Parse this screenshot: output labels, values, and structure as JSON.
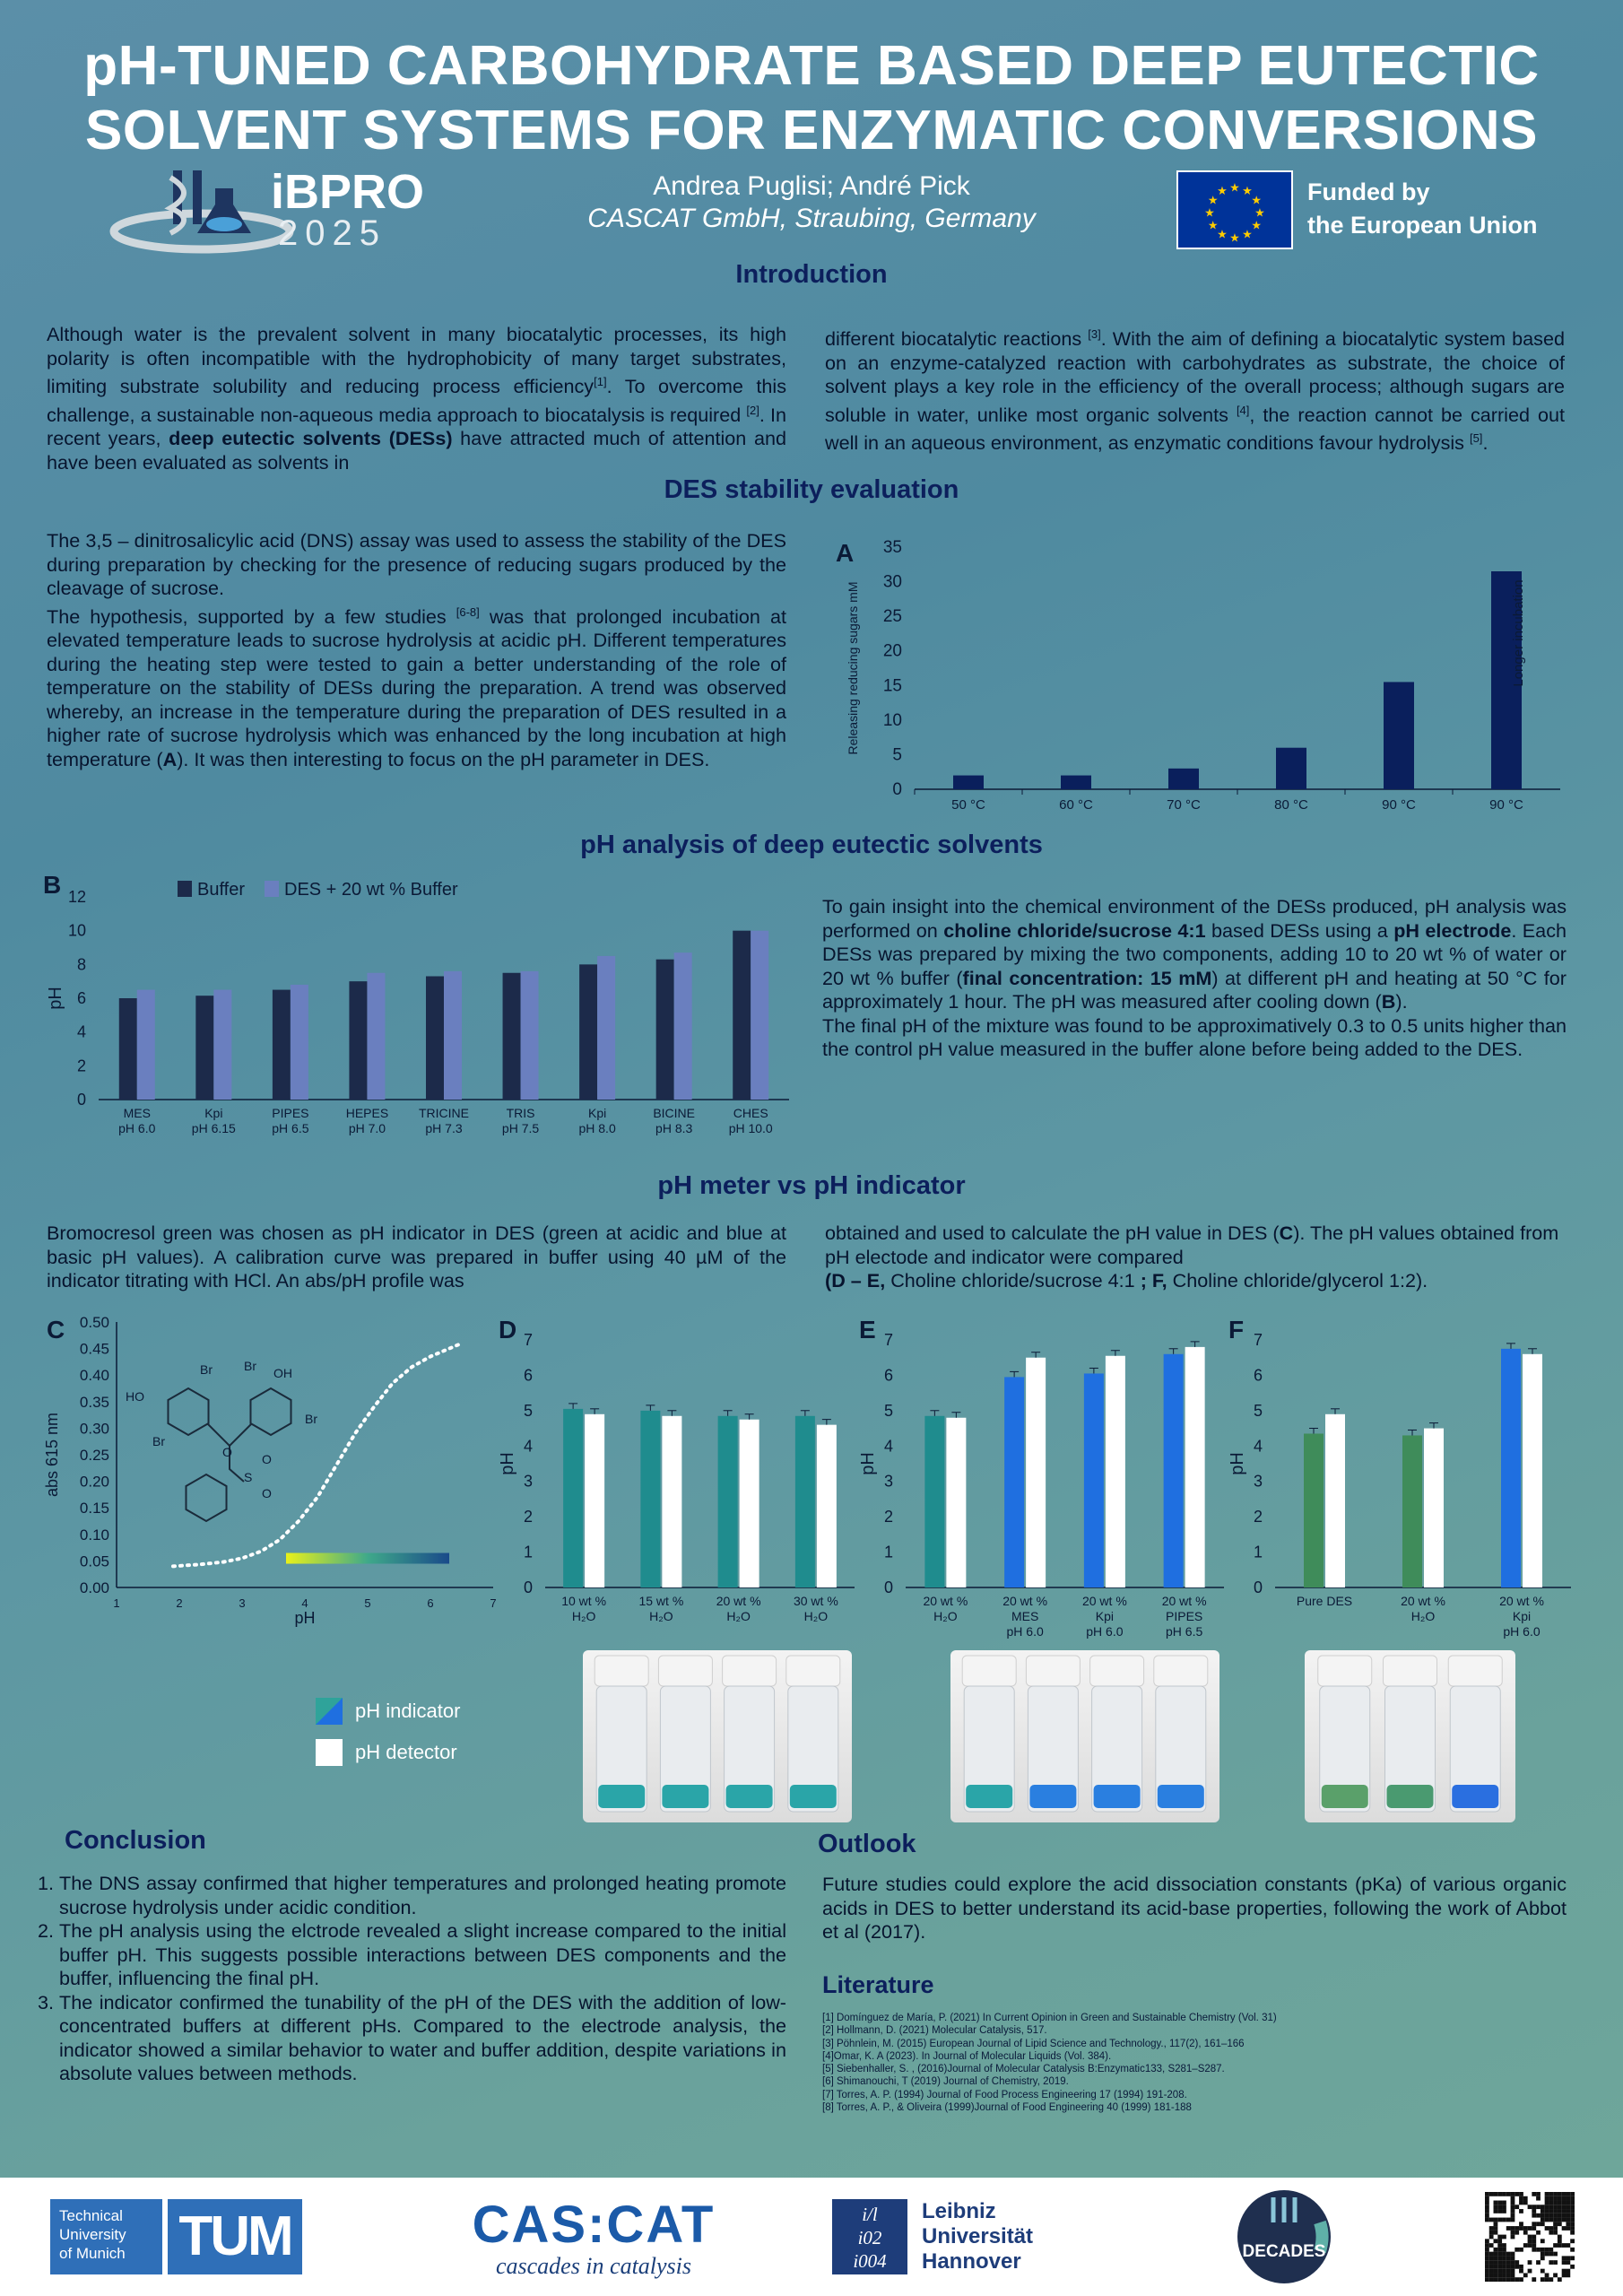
{
  "title_line1": "pH-TUNED CARBOHYDRATE BASED DEEP EUTECTIC",
  "title_line2": "SOLVENT SYSTEMS FOR ENZYMATIC CONVERSIONS",
  "authors": "Andrea Puglisi; André Pick",
  "affiliation": "CASCAT GmbH, Straubing, Germany",
  "logo_ibpro": {
    "name": "iBPRO",
    "year": "2025"
  },
  "eu_funding": {
    "line1": "Funded by",
    "line2": "the European Union"
  },
  "intro": {
    "heading": "Introduction",
    "left_1": "Although water is the prevalent solvent in many biocatalytic processes, its high polarity is often incompatible with the hydrophobicity of many target substrates, limiting substrate solubility and reducing process efficiency",
    "left_ref1": "[1]",
    "left_2": ". To overcome this challenge, a sustainable non-aqueous media approach to biocatalysis is required ",
    "left_ref2": "[2]",
    "left_3": ". In recent years, ",
    "left_bold": "deep eutectic solvents (DESs)",
    "left_4": " have attracted much of attention and have been evaluated as solvents in",
    "right_1": "different biocatalytic reactions ",
    "right_ref3": "[3]",
    "right_2": ". With the aim of defining a biocatalytic system based on an enzyme-catalyzed reaction with carbohydrates as substrate, the choice of solvent plays a key role in the efficiency of the overall process; although sugars are soluble in water, unlike most organic solvents ",
    "right_ref4": "[4]",
    "right_3": ", the reaction cannot be carried out well in an aqueous environment, as enzymatic conditions favour hydrolysis ",
    "right_ref5": "[5]",
    "right_4": "."
  },
  "stability": {
    "heading": "DES stability evaluation",
    "text_1": "The 3,5 – dinitrosalicylic acid (DNS) assay was used to assess the stability of the DES during preparation by checking for the presence of reducing sugars produced by the cleavage of sucrose.",
    "text_2": "The hypothesis, supported by a few studies ",
    "ref": "[6-8]",
    "text_3": " was that prolonged incubation at elevated temperature leads to sucrose hydrolysis at acidic pH. Different temperatures during the heating step were tested to gain a better understanding of the role of temperature on the stability of DESs during the preparation. A trend was observed whereby, an increase in the temperature during the preparation of DES resulted in a higher rate of sucrose hydrolysis which was enhanced by the long incubation at high temperature (",
    "text_bold": "A",
    "text_4": "). It was then interesting to focus on the pH parameter in DES."
  },
  "ph_analysis": {
    "heading": "pH analysis of deep eutectic solvents",
    "text_1": "To gain insight into the chemical environment of the DESs produced, pH analysis was performed on ",
    "bold_1": "choline chloride/sucrose 4:1",
    "text_2": " based DESs using a ",
    "bold_2": "pH electrode",
    "text_3": ". Each DESs was prepared by mixing the two components, adding 10 to 20 wt % of water or 20 wt % buffer (",
    "bold_3": "final concentration: 15 mM",
    "text_4": ") at different pH and heating at 50 °C for approximately 1 hour. The pH was measured after cooling down (",
    "bold_4": "B",
    "text_5": ").",
    "text_6": "The final pH of the mixture was found to be approximatively 0.3 to 0.5 units higher than the control pH value measured in the buffer alone before being added to the DES."
  },
  "meter": {
    "heading": "pH meter vs pH indicator",
    "left": "Bromocresol green was chosen as pH indicator in DES (green at acidic and blue at basic pH values). A calibration curve was prepared in buffer using 40 µM of the indicator titrating with HCl. An abs/pH profile was",
    "right_1": "obtained and used to calculate the pH value in DES (",
    "right_b1": "C",
    "right_2": "). The pH values obtained from pH electode and indicator were compared",
    "right_b2": "(D – E,",
    "right_3": " Choline chloride/sucrose 4:1 ",
    "right_b3": "; F,",
    "right_4": " Choline chloride/glycerol 1:2)."
  },
  "legend_cf": {
    "indicator": "pH indicator",
    "detector": "pH detector"
  },
  "conclusion": {
    "heading": "Conclusion",
    "items": [
      "The DNS assay confirmed that higher temperatures and prolonged heating promote sucrose hydrolysis under acidic condition.",
      "The pH analysis using the elctrode revealed a slight increase compared to the initial buffer pH. This suggests possible interactions between DES components and the buffer, influencing the final pH.",
      "The indicator confirmed the tunability of the pH of the DES with the addition of low-concentrated buffers at different pHs. Compared to the electrode analysis, the indicator showed a similar behavior to water and buffer addition, despite variations in absolute values between methods."
    ]
  },
  "outlook": {
    "heading": "Outlook",
    "text": "Future studies could explore the acid dissociation constants (pKa) of various organic acids in DES to better understand its acid-base properties, following the work of Abbot et al (2017)."
  },
  "literature": {
    "heading": "Literature",
    "items": [
      "[1] Domínguez de María, P. (2021) In Current Opinion in Green and Sustainable Chemistry (Vol. 31)",
      "[2] Hollmann, D. (2021) Molecular Catalysis, 517.",
      "[3] Pöhnlein, M. (2015) European Journal of Lipid Science and Technology., 117(2), 161–166",
      "[4]Omar, K. A (2023). In Journal of Molecular Liquids (Vol. 384).",
      "[5] Siebenhaller, S. , (2016)Journal of Molecular Catalysis B:Enzymatic133, S281–S287.",
      "[6] Shimanouchi, T (2019) Journal of Chemistry, 2019.",
      "[7] Torres, A. P. (1994) Journal of Food Process Engineering 17 (1994) 191-208.",
      "[8] Torres, A. P., & Oliveira (1999)Journal of Food Engineering 40 (1999) 181-188"
    ]
  },
  "footer": {
    "tum_text": [
      "Technical",
      "University",
      "of Munich"
    ],
    "tum_logo": "TUM",
    "cascat": "CAS:CAT",
    "cascat_sub": "cascades in catalysis",
    "leibniz": [
      "Leibniz",
      "Universität",
      "Hannover"
    ],
    "leibniz_mark": [
      "i/l",
      "i02",
      "i004"
    ],
    "decades": "DECADES"
  },
  "colors": {
    "navy": "#0a1f5c",
    "buffer_bar": "#1c2a4a",
    "des_bar": "#6a7fbf",
    "teal": "#1f8c8e",
    "blue": "#1f6fe0",
    "green": "#3f8c5a"
  },
  "chart_data": [
    {
      "id": "A",
      "type": "bar",
      "panel_label": "A",
      "categories": [
        "50 °C",
        "60 °C",
        "70 °C",
        "80 °C",
        "90 °C",
        "90 °C"
      ],
      "values": [
        2,
        2,
        3,
        6,
        15.5,
        31.5
      ],
      "ylabel": "Releasing reducing sugars mM",
      "ylim": [
        0,
        35
      ],
      "yticks": [
        0,
        5,
        10,
        15,
        20,
        25,
        30,
        35
      ],
      "annotation": "Longer incubation"
    },
    {
      "id": "B",
      "type": "bar",
      "panel_label": "B",
      "categories": [
        [
          "MES",
          "pH 6.0"
        ],
        [
          "Kpi",
          "pH 6.15"
        ],
        [
          "PIPES",
          "pH 6.5"
        ],
        [
          "HEPES",
          "pH 7.0"
        ],
        [
          "TRICINE",
          "pH 7.3"
        ],
        [
          "TRIS",
          "pH 7.5"
        ],
        [
          "Kpi",
          "pH 8.0"
        ],
        [
          "BICINE",
          "pH 8.3"
        ],
        [
          "CHES",
          "pH 10.0"
        ]
      ],
      "series": [
        {
          "name": "Buffer",
          "values": [
            6.0,
            6.15,
            6.5,
            7.0,
            7.3,
            7.5,
            8.0,
            8.3,
            10.0
          ]
        },
        {
          "name": "DES + 20 wt % Buffer",
          "values": [
            6.5,
            6.5,
            6.8,
            7.5,
            7.6,
            7.6,
            8.5,
            8.7,
            10.0
          ]
        }
      ],
      "ylabel": "pH",
      "ylim": [
        0,
        12
      ],
      "yticks": [
        0,
        2,
        4,
        6,
        8,
        10,
        12
      ],
      "legend": "top-left"
    },
    {
      "id": "C",
      "type": "line",
      "panel_label": "C",
      "x": [
        1.9,
        2.3,
        2.7,
        3.0,
        3.3,
        3.6,
        3.9,
        4.2,
        4.5,
        4.8,
        5.1,
        5.4,
        5.7,
        6.0,
        6.3,
        6.5
      ],
      "y": [
        0.04,
        0.043,
        0.048,
        0.055,
        0.068,
        0.09,
        0.125,
        0.17,
        0.23,
        0.29,
        0.34,
        0.385,
        0.415,
        0.435,
        0.45,
        0.46
      ],
      "xlabel": "pH",
      "ylabel": "abs 615 nm",
      "xlim": [
        1,
        7
      ],
      "ylim": [
        0,
        0.5
      ],
      "xticks": [
        1,
        2,
        3,
        4,
        5,
        6,
        7
      ],
      "yticks": [
        0.0,
        0.05,
        0.1,
        0.15,
        0.2,
        0.25,
        0.3,
        0.35,
        0.4,
        0.45,
        0.5
      ],
      "ytick_labels": [
        "0.00",
        "0.05",
        "0.10",
        "0.15",
        "0.20",
        "0.25",
        "0.30",
        "0.35",
        "0.40",
        "0.45",
        "0.50"
      ],
      "structure_labels": [
        "Br",
        "OH",
        "HO",
        "Br",
        "Br",
        "Br",
        "O",
        "S",
        "O",
        "O"
      ]
    },
    {
      "id": "D",
      "type": "bar",
      "panel_label": "D",
      "categories": [
        [
          "10 wt %",
          "H₂O"
        ],
        [
          "15 wt %",
          "H₂O"
        ],
        [
          "20 wt %",
          "H₂O"
        ],
        [
          "30 wt %",
          "H₂O"
        ]
      ],
      "series": [
        {
          "name": "pH indicator",
          "values": [
            5.05,
            5.0,
            4.85,
            4.85
          ]
        },
        {
          "name": "pH detector",
          "values": [
            4.9,
            4.85,
            4.75,
            4.6
          ]
        }
      ],
      "ylabel": "pH",
      "ylim": [
        0,
        7
      ],
      "yticks": [
        0,
        1,
        2,
        3,
        4,
        5,
        6,
        7
      ]
    },
    {
      "id": "E",
      "type": "bar",
      "panel_label": "E",
      "categories": [
        [
          "20 wt %",
          "H₂O"
        ],
        [
          "20 wt %",
          "MES",
          "pH 6.0"
        ],
        [
          "20 wt %",
          "Kpi",
          "pH 6.0"
        ],
        [
          "20 wt %",
          "PIPES",
          "pH 6.5"
        ]
      ],
      "series": [
        {
          "name": "pH indicator",
          "values": [
            4.85,
            5.95,
            6.05,
            6.6
          ]
        },
        {
          "name": "pH detector",
          "values": [
            4.8,
            6.5,
            6.55,
            6.8
          ]
        }
      ],
      "ylabel": "pH",
      "ylim": [
        0,
        7
      ],
      "yticks": [
        0,
        1,
        2,
        3,
        4,
        5,
        6,
        7
      ]
    },
    {
      "id": "F",
      "type": "bar",
      "panel_label": "F",
      "categories": [
        [
          "Pure DES"
        ],
        [
          "20 wt %",
          "H₂O"
        ],
        [
          "20 wt %",
          "Kpi",
          "pH 6.0"
        ]
      ],
      "series": [
        {
          "name": "pH indicator",
          "values": [
            4.35,
            4.3,
            6.75
          ]
        },
        {
          "name": "pH detector",
          "values": [
            4.9,
            4.5,
            6.6
          ]
        }
      ],
      "ylabel": "pH",
      "ylim": [
        0,
        7
      ],
      "yticks": [
        0,
        1,
        2,
        3,
        4,
        5,
        6,
        7
      ]
    }
  ]
}
